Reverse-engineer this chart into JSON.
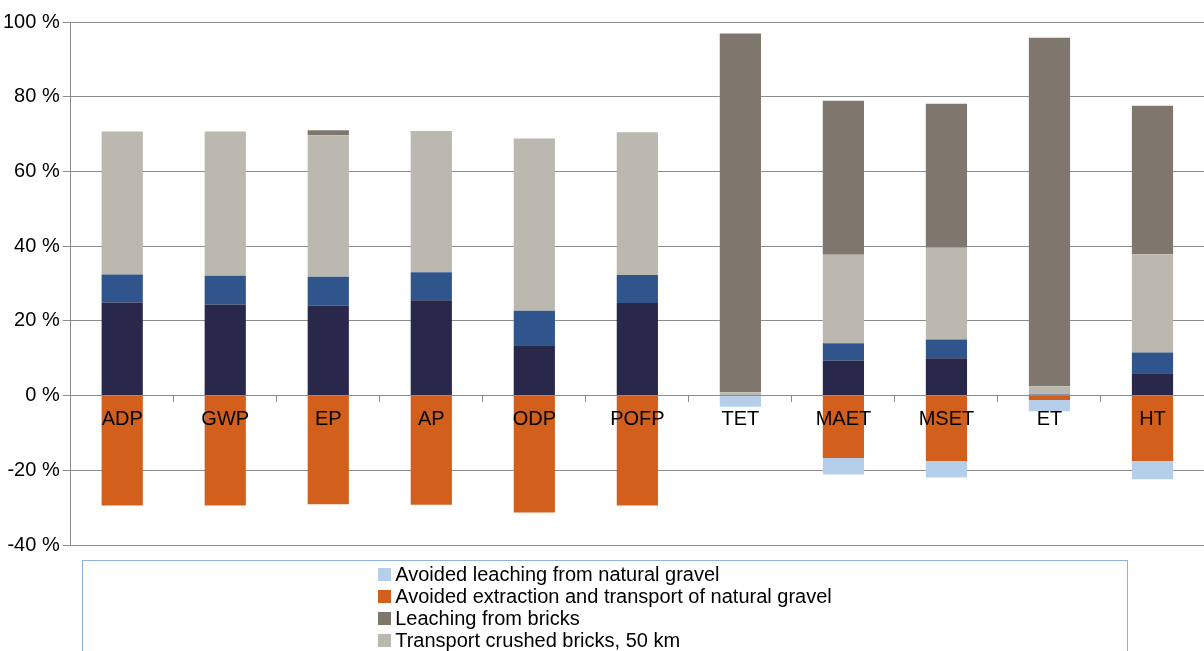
{
  "chart_data": {
    "type": "bar",
    "stacked": true,
    "categories": [
      "ADP",
      "GWP",
      "EP",
      "AP",
      "ODP",
      "POFP",
      "TET",
      "MAET",
      "MSET",
      "ET",
      "HT"
    ],
    "series": [
      {
        "color": "#29284b",
        "values": [
          24.9,
          24.4,
          24.1,
          25.5,
          13.5,
          24.8,
          null,
          9.4,
          10.0,
          null,
          6.0
        ]
      },
      {
        "color": "#30548c",
        "values": [
          7.5,
          7.7,
          7.7,
          7.5,
          9.2,
          7.5,
          null,
          4.6,
          5.0,
          0.3,
          5.5
        ]
      },
      {
        "name": "Transport crushed bricks, 50 km",
        "color": "#bbb8b0",
        "values": [
          38.3,
          38.6,
          37.9,
          37.8,
          46.1,
          38.2,
          0.9,
          23.7,
          24.6,
          2.2,
          26.3
        ]
      },
      {
        "name": "Leaching from bricks",
        "color": "#7f776e",
        "values": [
          null,
          null,
          1.3,
          null,
          null,
          null,
          96.0,
          41.2,
          38.5,
          93.3,
          39.8
        ]
      },
      {
        "name": "Avoided extraction and transport of natural gravel",
        "color": "#d2601c",
        "values": [
          -29.4,
          -29.4,
          -29.1,
          -29.2,
          -31.3,
          -29.4,
          null,
          -16.7,
          -17.5,
          -1.2,
          -17.5
        ]
      },
      {
        "name": "Avoided leaching from natural gravel",
        "color": "#b5cfeb",
        "values": [
          null,
          null,
          null,
          null,
          null,
          null,
          -3.0,
          -4.4,
          -4.4,
          -3.0,
          -4.9
        ]
      }
    ],
    "ylim": [
      -40,
      100
    ],
    "yticks": [
      {
        "value": -40,
        "label": "-40 %"
      },
      {
        "value": -20,
        "label": "-20 %"
      },
      {
        "value": 0,
        "label": "0 %"
      },
      {
        "value": 20,
        "label": "20 %"
      },
      {
        "value": 40,
        "label": "40 %"
      },
      {
        "value": 60,
        "label": "60 %"
      },
      {
        "value": 80,
        "label": "80 %"
      },
      {
        "value": 100,
        "label": "100 %"
      }
    ],
    "grid": "y",
    "legend": "bottom"
  }
}
